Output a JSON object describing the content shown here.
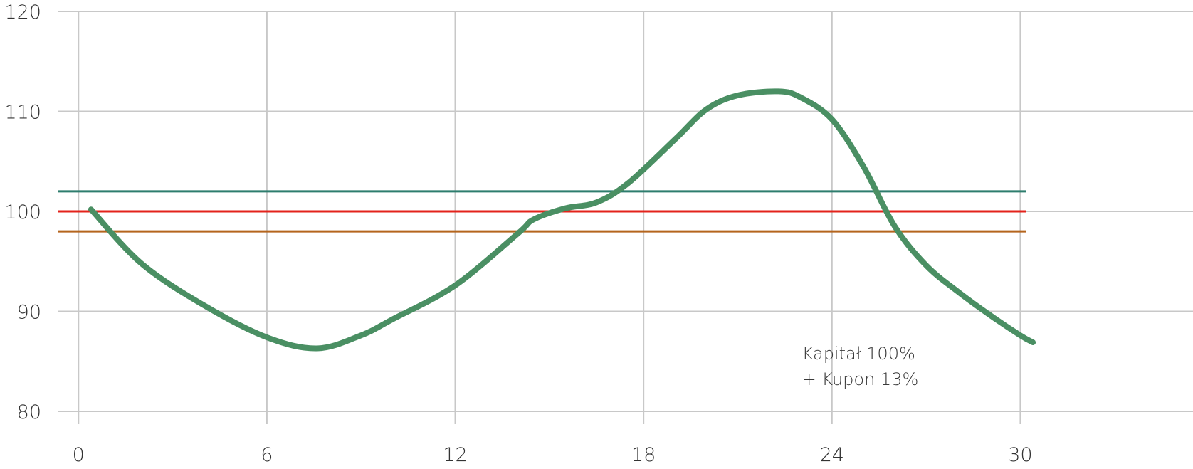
{
  "chart_data": {
    "type": "line",
    "title": "",
    "xlabel": "",
    "ylabel": "",
    "xlim": [
      -2.5,
      35.5
    ],
    "ylim": [
      80,
      120
    ],
    "x_ticks": [
      0,
      6,
      12,
      18,
      24,
      30
    ],
    "y_ticks": [
      80,
      90,
      100,
      110,
      120
    ],
    "grid": {
      "x": true,
      "y": true
    },
    "reference_lines": [
      {
        "y": 102,
        "color": "#2e7d6e"
      },
      {
        "y": 100,
        "color": "#e3231b"
      },
      {
        "y": 98,
        "color": "#b5651d"
      }
    ],
    "series": [
      {
        "color": "#4a8f63",
        "x": [
          0.4,
          2,
          4,
          6,
          7.6,
          9,
          10,
          12,
          14,
          14.5,
          15.5,
          16.5,
          17.5,
          19,
          20,
          21,
          22.3,
          23,
          24,
          25,
          26,
          27,
          28,
          29,
          30,
          30.4
        ],
        "y": [
          100.2,
          94.8,
          90.6,
          87.4,
          86.3,
          87.6,
          89.2,
          92.6,
          97.8,
          99.2,
          100.3,
          100.9,
          102.8,
          107.2,
          110.2,
          111.6,
          112.0,
          111.4,
          109.2,
          104.5,
          98.5,
          94.6,
          92.0,
          89.7,
          87.6,
          86.9
        ]
      }
    ],
    "annotations": [
      {
        "lines": [
          "Kapitał 100%",
          "+ Kupon 13%"
        ],
        "x": 23,
        "y": 84
      }
    ]
  },
  "colors": {
    "grid": "#c8c8c8",
    "tick_text": "#333333",
    "annotation_text": "#3a3a3a"
  }
}
